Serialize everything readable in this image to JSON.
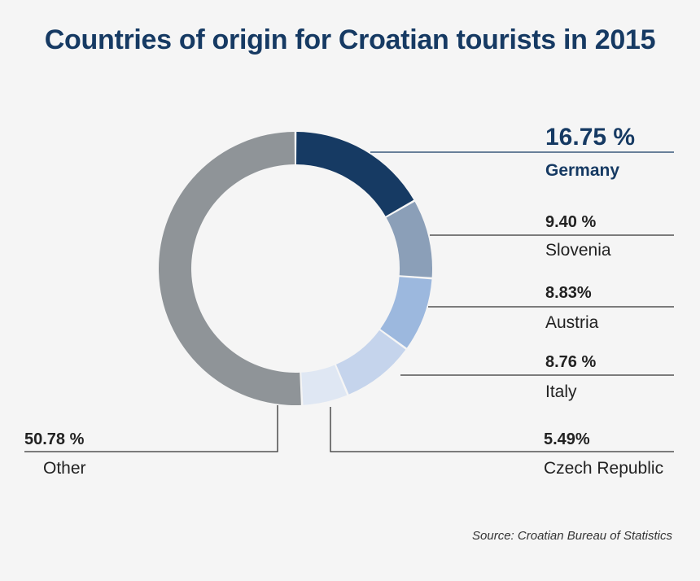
{
  "chart_data": {
    "type": "pie",
    "variant": "donut",
    "title": "Countries of origin for Croatian tourists in 2015",
    "series": [
      {
        "name": "Germany",
        "label": "16.75 %",
        "value": 16.75,
        "color": "#163a63"
      },
      {
        "name": "Slovenia",
        "label": "9.40 %",
        "value": 9.4,
        "color": "#8b9fb8"
      },
      {
        "name": "Austria",
        "label": "8.83%",
        "value": 8.83,
        "color": "#9cb8de"
      },
      {
        "name": "Italy",
        "label": "8.76 %",
        "value": 8.76,
        "color": "#c5d4ec"
      },
      {
        "name": "Czech Republic",
        "label": "5.49%",
        "value": 5.49,
        "color": "#dfe7f3"
      },
      {
        "name": "Other",
        "label": "50.78 %",
        "value": 50.78,
        "color": "#8f9498"
      }
    ],
    "source": "Source: Croatian Bureau of Statistics"
  }
}
